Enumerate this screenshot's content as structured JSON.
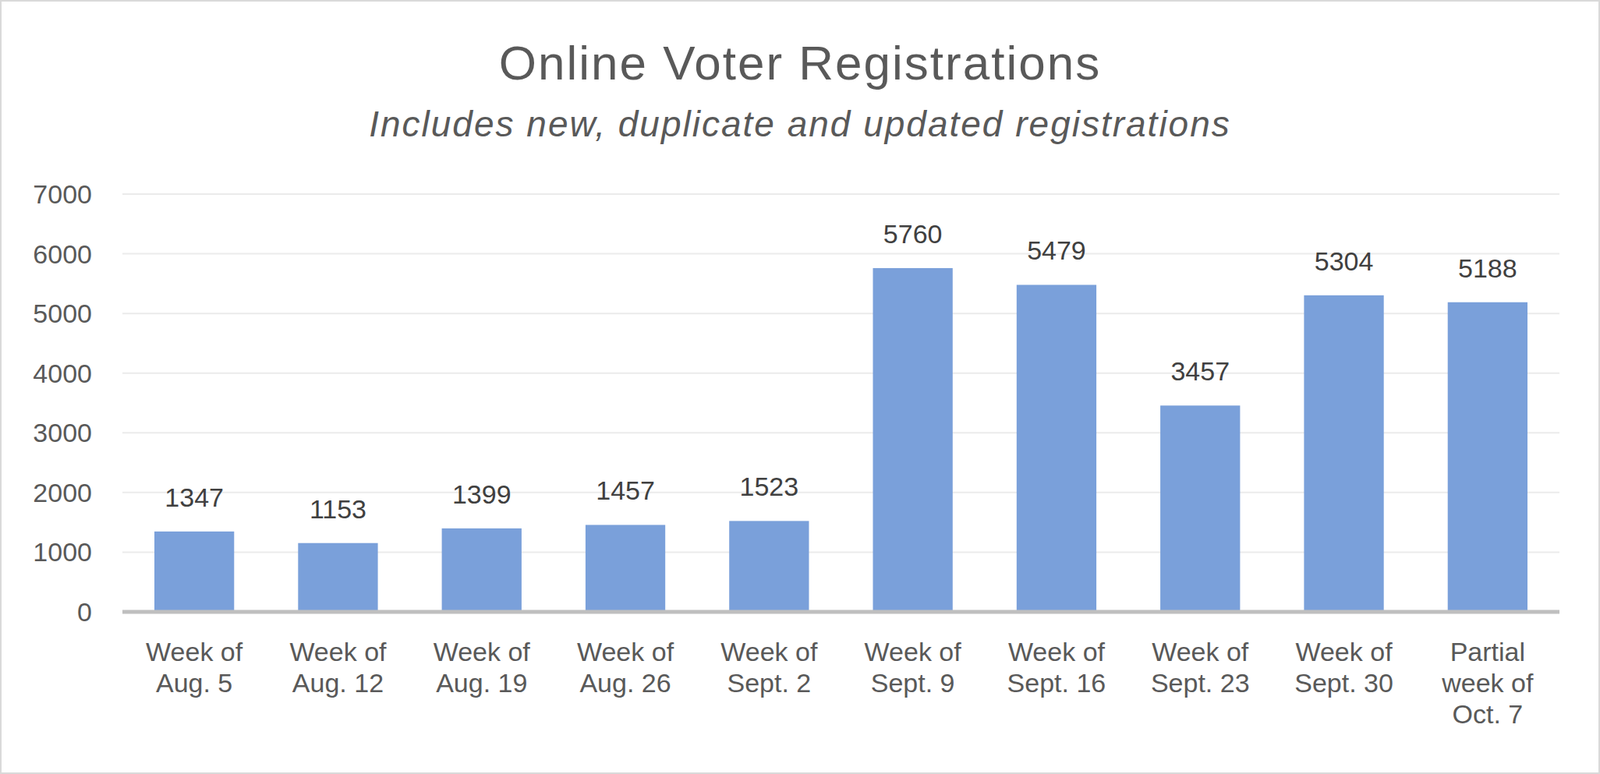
{
  "chart_data": {
    "type": "bar",
    "title": "Online Voter Registrations",
    "subtitle": "Includes new, duplicate and updated registrations",
    "categories": [
      "Week of Aug. 5",
      "Week of Aug. 12",
      "Week of Aug. 19",
      "Week of Aug. 26",
      "Week of Sept. 2",
      "Week of Sept. 9",
      "Week of Sept. 16",
      "Week of Sept. 23",
      "Week of Sept. 30",
      "Partial week of Oct. 7"
    ],
    "values": [
      1347,
      1153,
      1399,
      1457,
      1523,
      5760,
      5479,
      3457,
      5304,
      5188
    ],
    "color": "#7aa0da",
    "ylim": [
      0,
      7000
    ],
    "yticks": [
      0,
      1000,
      2000,
      3000,
      4000,
      5000,
      6000,
      7000
    ],
    "grid": true,
    "data_labels": true
  }
}
